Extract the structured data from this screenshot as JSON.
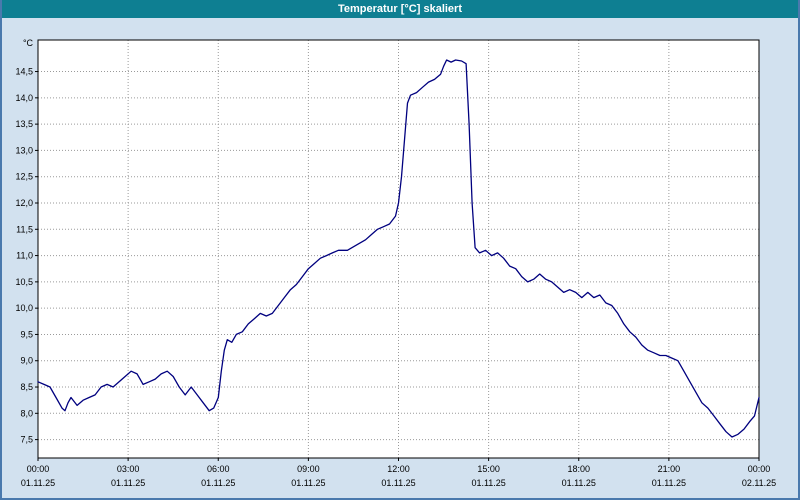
{
  "window": {
    "title": "Temperatur [°C] skaliert"
  },
  "chart_data": {
    "type": "line",
    "title": "Temperatur [°C] skaliert",
    "xlabel": "",
    "ylabel": "°C",
    "xlim": [
      0,
      24
    ],
    "ylim": [
      7.15,
      15.1
    ],
    "grid": true,
    "grid_color": "#9a9a9a",
    "plot_background": "#ffffff",
    "window_background": "#d2e1ef",
    "titlebar_color": "#0e7f92",
    "y_ticks": [
      {
        "value": 7.5,
        "label": "7,5"
      },
      {
        "value": 8.0,
        "label": "8,0"
      },
      {
        "value": 8.5,
        "label": "8,5"
      },
      {
        "value": 9.0,
        "label": "9,0"
      },
      {
        "value": 9.5,
        "label": "9,5"
      },
      {
        "value": 10.0,
        "label": "10,0"
      },
      {
        "value": 10.5,
        "label": "10,5"
      },
      {
        "value": 11.0,
        "label": "11,0"
      },
      {
        "value": 11.5,
        "label": "11,5"
      },
      {
        "value": 12.0,
        "label": "12,0"
      },
      {
        "value": 12.5,
        "label": "12,5"
      },
      {
        "value": 13.0,
        "label": "13,0"
      },
      {
        "value": 13.5,
        "label": "13,5"
      },
      {
        "value": 14.0,
        "label": "14,0"
      },
      {
        "value": 14.5,
        "label": "14,5"
      }
    ],
    "x_ticks": [
      {
        "hour": 0,
        "time": "00:00",
        "date": "01.11.25"
      },
      {
        "hour": 3,
        "time": "03:00",
        "date": "01.11.25"
      },
      {
        "hour": 6,
        "time": "06:00",
        "date": "01.11.25"
      },
      {
        "hour": 9,
        "time": "09:00",
        "date": "01.11.25"
      },
      {
        "hour": 12,
        "time": "12:00",
        "date": "01.11.25"
      },
      {
        "hour": 15,
        "time": "15:00",
        "date": "01.11.25"
      },
      {
        "hour": 18,
        "time": "18:00",
        "date": "01.11.25"
      },
      {
        "hour": 21,
        "time": "21:00",
        "date": "01.11.25"
      },
      {
        "hour": 24,
        "time": "00:00",
        "date": "02.11.25"
      }
    ],
    "series": [
      {
        "name": "Temperatur",
        "color": "#00007f",
        "points": [
          [
            0,
            8.6
          ],
          [
            0.2,
            8.55
          ],
          [
            0.4,
            8.5
          ],
          [
            0.6,
            8.3
          ],
          [
            0.8,
            8.1
          ],
          [
            0.9,
            8.05
          ],
          [
            1.0,
            8.2
          ],
          [
            1.1,
            8.3
          ],
          [
            1.3,
            8.15
          ],
          [
            1.5,
            8.25
          ],
          [
            1.7,
            8.3
          ],
          [
            1.9,
            8.35
          ],
          [
            2.1,
            8.5
          ],
          [
            2.3,
            8.55
          ],
          [
            2.5,
            8.5
          ],
          [
            2.7,
            8.6
          ],
          [
            2.9,
            8.7
          ],
          [
            3.1,
            8.8
          ],
          [
            3.3,
            8.75
          ],
          [
            3.5,
            8.55
          ],
          [
            3.7,
            8.6
          ],
          [
            3.9,
            8.65
          ],
          [
            4.1,
            8.75
          ],
          [
            4.3,
            8.8
          ],
          [
            4.5,
            8.7
          ],
          [
            4.7,
            8.5
          ],
          [
            4.9,
            8.35
          ],
          [
            5.1,
            8.5
          ],
          [
            5.3,
            8.35
          ],
          [
            5.5,
            8.2
          ],
          [
            5.7,
            8.05
          ],
          [
            5.85,
            8.1
          ],
          [
            6.0,
            8.3
          ],
          [
            6.1,
            8.8
          ],
          [
            6.2,
            9.2
          ],
          [
            6.3,
            9.4
          ],
          [
            6.45,
            9.35
          ],
          [
            6.6,
            9.5
          ],
          [
            6.8,
            9.55
          ],
          [
            7.0,
            9.7
          ],
          [
            7.2,
            9.8
          ],
          [
            7.4,
            9.9
          ],
          [
            7.6,
            9.85
          ],
          [
            7.8,
            9.9
          ],
          [
            8.0,
            10.05
          ],
          [
            8.2,
            10.2
          ],
          [
            8.4,
            10.35
          ],
          [
            8.6,
            10.45
          ],
          [
            8.8,
            10.6
          ],
          [
            9.0,
            10.75
          ],
          [
            9.2,
            10.85
          ],
          [
            9.4,
            10.95
          ],
          [
            9.6,
            11.0
          ],
          [
            9.8,
            11.05
          ],
          [
            10.0,
            11.1
          ],
          [
            10.3,
            11.1
          ],
          [
            10.6,
            11.2
          ],
          [
            10.9,
            11.3
          ],
          [
            11.1,
            11.4
          ],
          [
            11.3,
            11.5
          ],
          [
            11.5,
            11.55
          ],
          [
            11.7,
            11.6
          ],
          [
            11.9,
            11.75
          ],
          [
            12.0,
            12.0
          ],
          [
            12.1,
            12.5
          ],
          [
            12.2,
            13.2
          ],
          [
            12.3,
            13.9
          ],
          [
            12.4,
            14.05
          ],
          [
            12.6,
            14.1
          ],
          [
            12.8,
            14.2
          ],
          [
            13.0,
            14.3
          ],
          [
            13.2,
            14.35
          ],
          [
            13.4,
            14.45
          ],
          [
            13.5,
            14.6
          ],
          [
            13.6,
            14.72
          ],
          [
            13.75,
            14.68
          ],
          [
            13.9,
            14.72
          ],
          [
            14.1,
            14.7
          ],
          [
            14.25,
            14.65
          ],
          [
            14.35,
            13.5
          ],
          [
            14.45,
            12.0
          ],
          [
            14.55,
            11.15
          ],
          [
            14.7,
            11.05
          ],
          [
            14.9,
            11.1
          ],
          [
            15.1,
            11.0
          ],
          [
            15.3,
            11.05
          ],
          [
            15.5,
            10.95
          ],
          [
            15.7,
            10.8
          ],
          [
            15.9,
            10.75
          ],
          [
            16.1,
            10.6
          ],
          [
            16.3,
            10.5
          ],
          [
            16.5,
            10.55
          ],
          [
            16.7,
            10.65
          ],
          [
            16.9,
            10.55
          ],
          [
            17.1,
            10.5
          ],
          [
            17.3,
            10.4
          ],
          [
            17.5,
            10.3
          ],
          [
            17.7,
            10.35
          ],
          [
            17.9,
            10.3
          ],
          [
            18.1,
            10.2
          ],
          [
            18.3,
            10.3
          ],
          [
            18.5,
            10.2
          ],
          [
            18.7,
            10.25
          ],
          [
            18.9,
            10.1
          ],
          [
            19.1,
            10.05
          ],
          [
            19.3,
            9.9
          ],
          [
            19.5,
            9.7
          ],
          [
            19.7,
            9.55
          ],
          [
            19.9,
            9.45
          ],
          [
            20.1,
            9.3
          ],
          [
            20.3,
            9.2
          ],
          [
            20.5,
            9.15
          ],
          [
            20.7,
            9.1
          ],
          [
            20.9,
            9.1
          ],
          [
            21.1,
            9.05
          ],
          [
            21.3,
            9.0
          ],
          [
            21.5,
            8.8
          ],
          [
            21.7,
            8.6
          ],
          [
            21.9,
            8.4
          ],
          [
            22.1,
            8.2
          ],
          [
            22.3,
            8.1
          ],
          [
            22.5,
            7.95
          ],
          [
            22.7,
            7.8
          ],
          [
            22.9,
            7.65
          ],
          [
            23.1,
            7.55
          ],
          [
            23.3,
            7.6
          ],
          [
            23.5,
            7.7
          ],
          [
            23.7,
            7.85
          ],
          [
            23.85,
            7.95
          ],
          [
            24.0,
            8.3
          ]
        ]
      }
    ]
  }
}
